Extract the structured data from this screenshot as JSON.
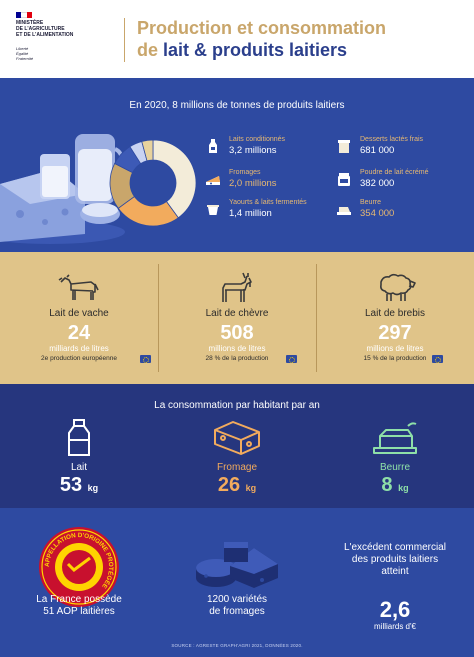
{
  "header": {
    "ministry_lines": [
      "MINISTÈRE",
      "DE L'AGRICULTURE",
      "ET DE L'ALIMENTATION"
    ],
    "motto_lines": [
      "Liberté",
      "Égalité",
      "Fraternité"
    ],
    "title_line1": "Production et consommation",
    "title_line2_prefix": "de ",
    "title_line2_bold": "lait & produits laitiers",
    "colors": {
      "gold": "#c9a66b",
      "blue": "#2b3f8c"
    }
  },
  "production": {
    "title": "En 2020, 8 millions de tonnes de produits laitiers",
    "items_left": [
      {
        "icon": "milk-bottle-icon",
        "label": "Laits conditionnés",
        "value": "3,2 millions"
      },
      {
        "icon": "cheese-icon",
        "label": "Fromages",
        "value": "2,0 millions"
      },
      {
        "icon": "yogurt-icon",
        "label": "Yaourts & laits fermentés",
        "value": "1,4 million"
      }
    ],
    "items_right": [
      {
        "icon": "dessert-cup-icon",
        "label": "Desserts lactés frais",
        "value": "681 000"
      },
      {
        "icon": "milk-powder-icon",
        "label": "Poudre de lait écrémé",
        "value": "382 000"
      },
      {
        "icon": "butter-icon",
        "label": "Beurre",
        "value": "354 000"
      }
    ],
    "donut_shares": [
      {
        "share": 0.4,
        "color": "#f3ecd9"
      },
      {
        "share": 0.25,
        "color": "#f2ab5d"
      },
      {
        "share": 0.175,
        "color": "#c9a66b"
      },
      {
        "share": 0.085,
        "color": "#3d5ab6"
      },
      {
        "share": 0.048,
        "color": "#c9d3f2"
      },
      {
        "share": 0.042,
        "color": "#e8d29c"
      }
    ]
  },
  "milk": [
    {
      "icon": "cow-icon",
      "name": "Lait de vache",
      "number": "24",
      "unit": "milliards de litres",
      "note": "2e production européenne"
    },
    {
      "icon": "goat-icon",
      "name": "Lait de chèvre",
      "number": "508",
      "unit": "millions de litres",
      "note": "28 % de la production"
    },
    {
      "icon": "sheep-icon",
      "name": "Lait de brebis",
      "number": "297",
      "unit": "millions de litres",
      "note": "15 % de la production"
    }
  ],
  "consumption": {
    "title": "La consommation par habitant par an",
    "items": [
      {
        "icon": "milk-bottle-icon",
        "name": "Lait",
        "number": "53",
        "unit": "kg",
        "color": "#ffffff"
      },
      {
        "icon": "cheese-icon",
        "name": "Fromage",
        "number": "26",
        "unit": "kg",
        "color": "#f2ab5d"
      },
      {
        "icon": "butter-icon",
        "name": "Beurre",
        "number": "8",
        "unit": "kg",
        "color": "#8ee0a8"
      }
    ]
  },
  "facts": {
    "aop_seal_text": "APPELLATION D'ORIGINE PROTÉGÉE",
    "aop_line1": "La France possède",
    "aop_line2": "51 AOP laitières",
    "varieties_line1": "1200 variétés",
    "varieties_line2": "de fromages",
    "trade_line1": "L'excédent commercial",
    "trade_line2": "des produits laitiers",
    "trade_line3": "atteint",
    "trade_number": "2,6",
    "trade_unit": "milliards d'€"
  },
  "source": "SOURCE : AGRESTE GRAPH'AGRI 2021, DONNÉES 2020."
}
